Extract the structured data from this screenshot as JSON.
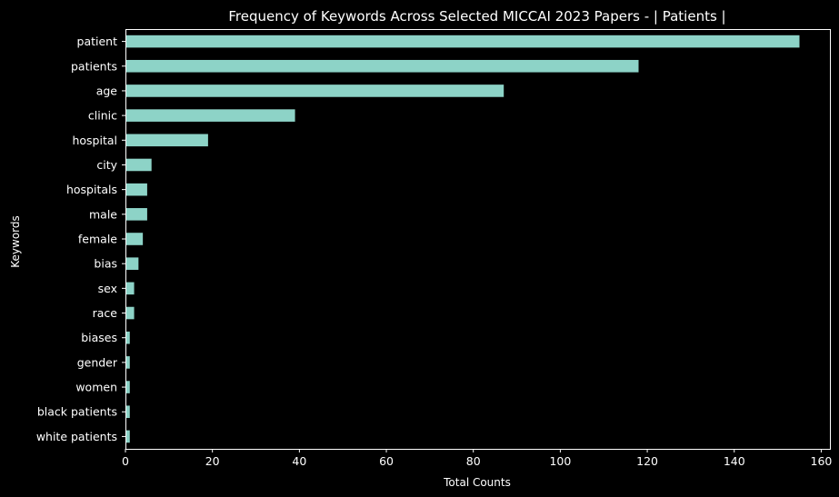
{
  "chart_data": {
    "type": "bar",
    "orientation": "horizontal",
    "title": "Frequency of Keywords Across Selected MICCAI 2023 Papers - | Patients |",
    "xlabel": "Total Counts",
    "ylabel": "Keywords",
    "categories": [
      "patient",
      "patients",
      "age",
      "clinic",
      "hospital",
      "city",
      "hospitals",
      "male",
      "female",
      "bias",
      "sex",
      "race",
      "biases",
      "gender",
      "women",
      "black patients",
      "white patients"
    ],
    "values": [
      155,
      118,
      87,
      39,
      19,
      6,
      5,
      5,
      4,
      3,
      2,
      2,
      1,
      1,
      1,
      1,
      1
    ],
    "xlim": [
      0,
      162
    ],
    "xticks": [
      0,
      20,
      40,
      60,
      80,
      100,
      120,
      140,
      160
    ],
    "grid": false,
    "legend": "none",
    "colors": {
      "bar": "#8dd3c7",
      "background": "#000000",
      "text": "#ffffff"
    }
  }
}
